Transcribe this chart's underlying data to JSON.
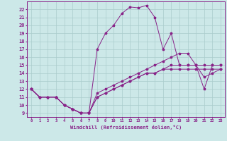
{
  "xlabel": "Windchill (Refroidissement éolien,°C)",
  "background_color": "#cce8e8",
  "grid_color": "#aacccc",
  "line_color": "#882288",
  "xlim": [
    -0.5,
    23.5
  ],
  "ylim": [
    8.5,
    23.0
  ],
  "xticks": [
    0,
    1,
    2,
    3,
    4,
    5,
    6,
    7,
    8,
    9,
    10,
    11,
    12,
    13,
    14,
    15,
    16,
    17,
    18,
    19,
    20,
    21,
    22,
    23
  ],
  "yticks": [
    9,
    10,
    11,
    12,
    13,
    14,
    15,
    16,
    17,
    18,
    19,
    20,
    21,
    22
  ],
  "series1_x": [
    0,
    1,
    2,
    3,
    4,
    5,
    6,
    7,
    8,
    9,
    10,
    11,
    12,
    13,
    14,
    15,
    16,
    17,
    18,
    19,
    20,
    21,
    22,
    23
  ],
  "series1_y": [
    12,
    11,
    11,
    11,
    10,
    9.5,
    9,
    9,
    17,
    19,
    20,
    21.5,
    22.3,
    22.2,
    22.5,
    21,
    17,
    19,
    15,
    15,
    15,
    12,
    15,
    15
  ],
  "series2_x": [
    0,
    1,
    2,
    3,
    4,
    5,
    6,
    7,
    8,
    9,
    10,
    11,
    12,
    13,
    14,
    15,
    16,
    17,
    18,
    19,
    20,
    21,
    22,
    23
  ],
  "series2_y": [
    12,
    11,
    11,
    11,
    10,
    9.5,
    9,
    9,
    11.5,
    12,
    12.5,
    13,
    13.5,
    14,
    14.5,
    15,
    15.5,
    16,
    16.5,
    16.5,
    15,
    13.5,
    14,
    14.5
  ],
  "series3_x": [
    0,
    1,
    2,
    3,
    4,
    5,
    6,
    7,
    8,
    9,
    10,
    11,
    12,
    13,
    14,
    15,
    16,
    17,
    18,
    19,
    20,
    21,
    22,
    23
  ],
  "series3_y": [
    12,
    11,
    11,
    11,
    10,
    9.5,
    9,
    9,
    11,
    11.5,
    12,
    12.5,
    13,
    13.5,
    14,
    14,
    14.5,
    15,
    15,
    15,
    15,
    15,
    15,
    15
  ],
  "series4_x": [
    0,
    1,
    2,
    3,
    4,
    5,
    6,
    7,
    8,
    9,
    10,
    11,
    12,
    13,
    14,
    15,
    16,
    17,
    18,
    19,
    20,
    21,
    22,
    23
  ],
  "series4_y": [
    12,
    11,
    11,
    11,
    10,
    9.5,
    9,
    9,
    11,
    11.5,
    12,
    12.5,
    13,
    13.5,
    14,
    14,
    14.5,
    14.5,
    14.5,
    14.5,
    14.5,
    14.5,
    14.5,
    14.5
  ],
  "marker": "*",
  "markersize": 2.5,
  "linewidth": 0.7
}
